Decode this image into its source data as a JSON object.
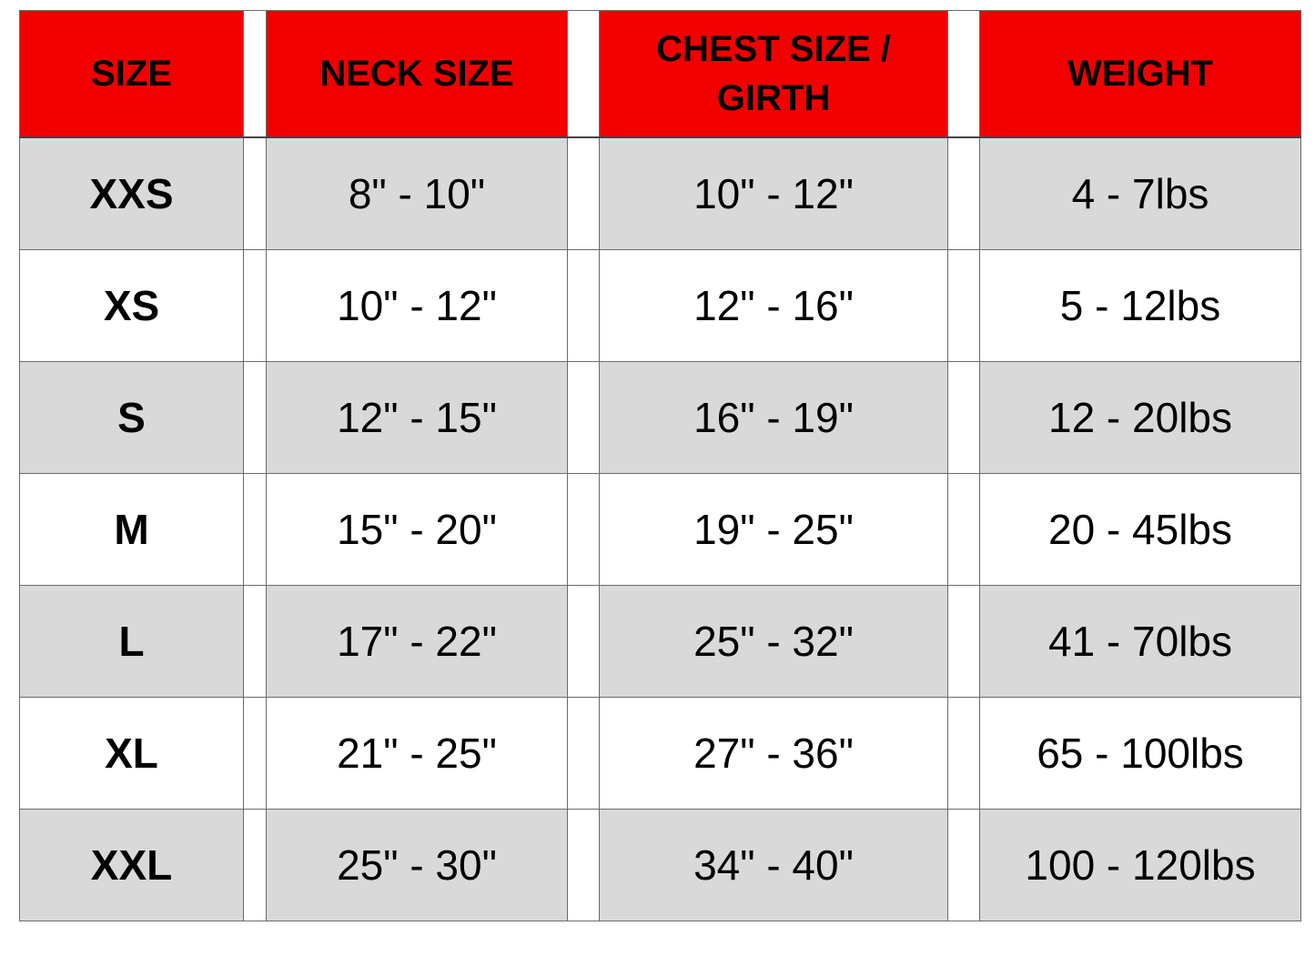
{
  "colors": {
    "header": "#f20000",
    "shaded_row": "#d9d9d9"
  },
  "headers": [
    "SIZE",
    "NECK SIZE",
    "CHEST SIZE / GIRTH",
    "WEIGHT"
  ],
  "rows": [
    {
      "size": "XXS",
      "neck": "8\" - 10\"",
      "chest": "10\" -  12\"",
      "weight": "4 - 7lbs"
    },
    {
      "size": "XS",
      "neck": "10\" - 12\"",
      "chest": "12\" - 16\"",
      "weight": "5 - 12lbs"
    },
    {
      "size": "S",
      "neck": "12\" - 15\"",
      "chest": "16\" - 19\"",
      "weight": "12 - 20lbs"
    },
    {
      "size": "M",
      "neck": "15\" - 20\"",
      "chest": "19\" - 25\"",
      "weight": "20 - 45lbs"
    },
    {
      "size": "L",
      "neck": "17\" - 22\"",
      "chest": "25\" - 32\"",
      "weight": "41 - 70lbs"
    },
    {
      "size": "XL",
      "neck": "21\" - 25\"",
      "chest": "27\" - 36\"",
      "weight": "65 - 100lbs"
    },
    {
      "size": "XXL",
      "neck": "25\" - 30\"",
      "chest": "34\" - 40\"",
      "weight": "100 - 120lbs"
    }
  ]
}
